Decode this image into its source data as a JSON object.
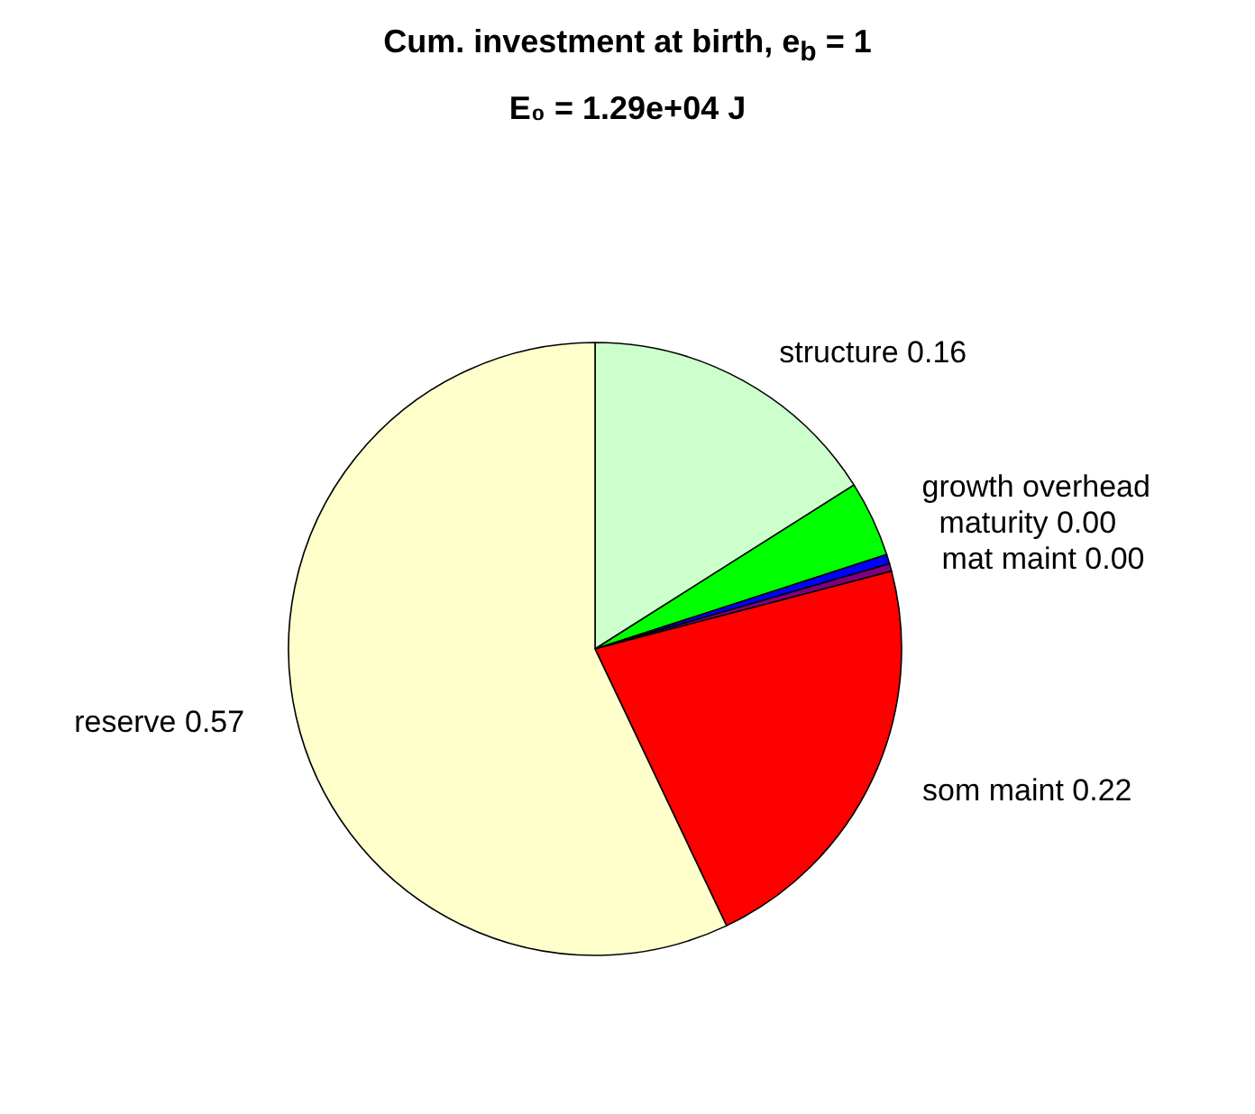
{
  "chart_data": {
    "type": "pie",
    "title": "Cum. investment at birth, e$_{b}$ = 1",
    "subtitle": "E₀ = 1.29e+04 J",
    "categories": [
      "structure",
      "growth overhead",
      "maturity",
      "mat maint",
      "som maint",
      "reserve"
    ],
    "values": [
      0.16,
      0.04,
      0.005,
      0.004,
      0.22,
      0.57
    ],
    "colors": [
      "#ccffcc",
      "#00ff00",
      "#0000ff",
      "#800080",
      "#ff0000",
      "#ffffcc"
    ],
    "value_labels": [
      "0.16",
      null,
      "0.00",
      "0.00",
      "0.22",
      "0.57"
    ]
  }
}
